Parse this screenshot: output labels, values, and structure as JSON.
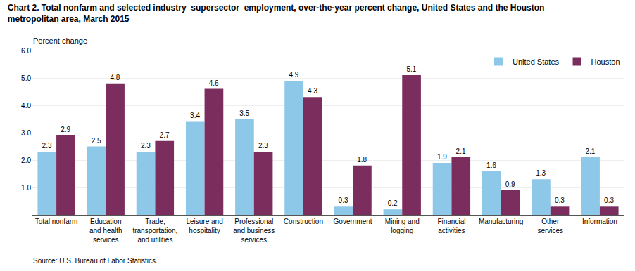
{
  "chart_data": {
    "type": "bar",
    "title": "Chart 2. Total nonfarm and selected industry  supersector  employment, over-the-year percent change, United States and the Houston\nmetropolitan area, March 2015",
    "ylabel": "Percent change",
    "annotations": [
      "Source: U.S. Bureau of Labor Statistics."
    ],
    "categories": [
      "Total nonfarm",
      "Education\nand health\nservices",
      "Trade,\ntransportation,\nand utilities",
      "Leisure and\nhospitality",
      "Professional\nand business\nservices",
      "Construction",
      "Government",
      "Mining and\nlogging",
      "Financial\nactivities",
      "Manufacturing",
      "Other\nservices",
      "Information"
    ],
    "series": [
      {
        "name": "United States",
        "color": "#8DC8E8",
        "values": [
          2.3,
          2.5,
          2.3,
          3.4,
          3.5,
          4.9,
          0.3,
          0.2,
          1.9,
          1.6,
          1.3,
          2.1
        ]
      },
      {
        "name": "Houston",
        "color": "#7B2D5E",
        "values": [
          2.9,
          4.8,
          2.7,
          4.6,
          2.3,
          4.3,
          1.8,
          5.1,
          2.1,
          0.9,
          0.3,
          0.3
        ]
      }
    ],
    "ylim": [
      0,
      6.0
    ],
    "yticks": [
      {
        "value": 1.0,
        "label": "1.0"
      },
      {
        "value": 2.0,
        "label": "2.0"
      },
      {
        "value": 3.0,
        "label": "3.0"
      },
      {
        "value": 4.0,
        "label": "4.0"
      },
      {
        "value": 5.0,
        "label": "5.0"
      },
      {
        "value": 6.0,
        "label": "6.0"
      }
    ],
    "grid": true,
    "legend": "upper right",
    "data_labels": true
  }
}
